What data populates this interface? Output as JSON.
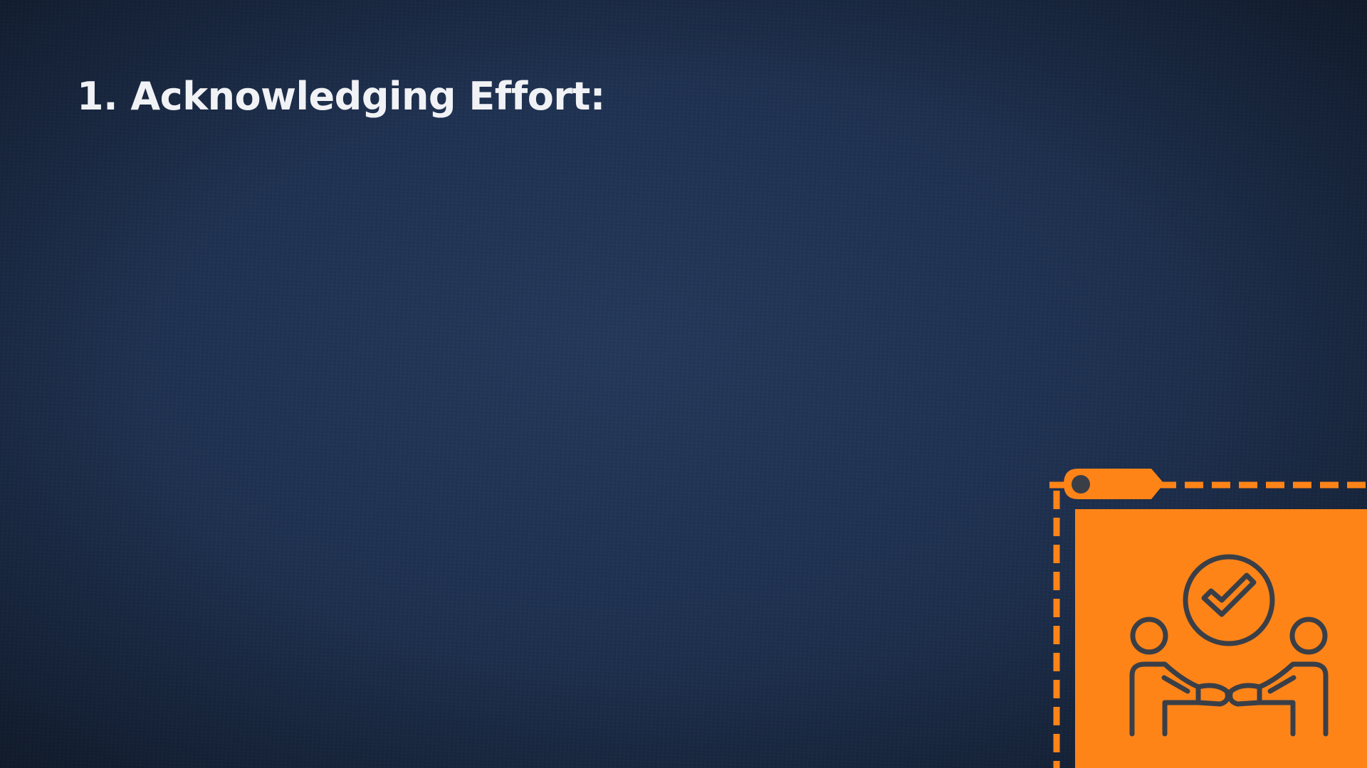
{
  "slide": {
    "title": "1. Acknowledging Effort:"
  },
  "colors": {
    "background": "#1e3150",
    "accent": "#ff8418",
    "icon_stroke": "#3a3f47",
    "title_text": "#f1f2f5"
  },
  "illustration": {
    "frame": "dashed-orange-frame",
    "tag": "tag-icon",
    "icon": "handshake-approval-icon"
  }
}
